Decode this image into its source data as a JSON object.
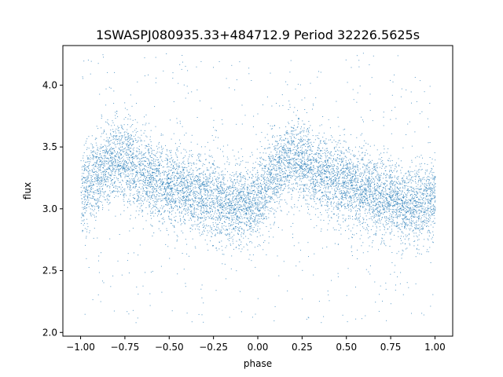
{
  "chart_data": {
    "type": "scatter",
    "title": "1SWASPJ080935.33+484712.9 Period 32226.5625s",
    "xlabel": "phase",
    "ylabel": "flux",
    "xlim": [
      -1.1,
      1.1
    ],
    "ylim": [
      1.97,
      4.32
    ],
    "x_ticks": [
      -1.0,
      -0.75,
      -0.5,
      -0.25,
      0.0,
      0.25,
      0.5,
      0.75,
      1.0
    ],
    "x_tick_labels": [
      "−1.00",
      "−0.75",
      "−0.50",
      "−0.25",
      "0.00",
      "0.25",
      "0.50",
      "0.75",
      "1.00"
    ],
    "y_ticks": [
      2.0,
      2.5,
      3.0,
      3.5,
      4.0
    ],
    "y_tick_labels": [
      "2.0",
      "2.5",
      "3.0",
      "3.5",
      "4.0"
    ],
    "grid": false,
    "legend": "none",
    "marker_color": "#1f77b4",
    "series": [
      {
        "x": [
          -1.0,
          -0.9,
          -0.8,
          -0.75,
          -0.7,
          -0.6,
          -0.5,
          -0.4,
          -0.3,
          -0.25,
          -0.2,
          -0.1,
          0.0,
          0.1,
          0.2,
          0.25,
          0.3,
          0.4,
          0.5,
          0.6,
          0.7,
          0.75,
          0.8,
          0.9,
          1.0
        ],
        "y_median": [
          3.1,
          3.32,
          3.42,
          3.4,
          3.34,
          3.26,
          3.2,
          3.14,
          3.1,
          3.08,
          3.06,
          3.03,
          3.05,
          3.3,
          3.42,
          3.4,
          3.34,
          3.26,
          3.2,
          3.14,
          3.1,
          3.08,
          3.06,
          3.03,
          3.1
        ]
      }
    ],
    "y_min_observed": 2.08,
    "y_max_observed": 4.27
  }
}
